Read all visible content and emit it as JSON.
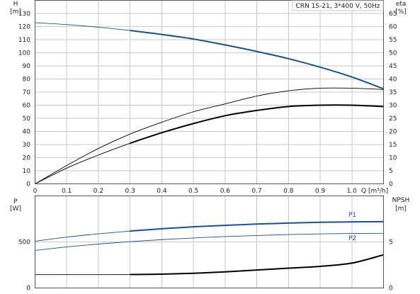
{
  "chart_data": [
    {
      "type": "line",
      "title": "CRN 1S-21, 3*400 V, 50Hz",
      "xlabel": "Q [m³/h]",
      "ylabel_left": [
        "H",
        "[m]"
      ],
      "ylabel_right": [
        "eta",
        "[%]"
      ],
      "xlim": [
        0,
        1.1
      ],
      "ylim_left": [
        0,
        140
      ],
      "ylim_right": [
        0,
        70
      ],
      "xticks": [
        "0",
        "0.1",
        "0.2",
        "0.3",
        "0.4",
        "0.5",
        "0.6",
        "0.7",
        "0.8",
        "0.9",
        "1.0"
      ],
      "yticks_left": [
        "0",
        "10",
        "20",
        "30",
        "40",
        "50",
        "60",
        "70",
        "80",
        "90",
        "100",
        "110",
        "120",
        "130"
      ],
      "yticks_right": [
        "0",
        "5",
        "10",
        "15",
        "20",
        "25",
        "30",
        "35",
        "40",
        "45",
        "50",
        "55",
        "60",
        "65"
      ],
      "grid": true,
      "series": [
        {
          "role": "head",
          "axis": "left",
          "color": "#1c4f8c",
          "x": [
            0,
            0.1,
            0.2,
            0.3,
            0.4,
            0.5,
            0.6,
            0.7,
            0.8,
            0.9,
            1.0,
            1.1
          ],
          "y": [
            123,
            121.5,
            119.5,
            117,
            114,
            110.5,
            106,
            101,
            95.5,
            89,
            81.5,
            72.5
          ],
          "bold_from": 0.3
        },
        {
          "role": "eta-thin",
          "axis": "right",
          "color": "#000000",
          "x": [
            0,
            0.1,
            0.2,
            0.3,
            0.4,
            0.5,
            0.6,
            0.7,
            0.8,
            0.9,
            1.0,
            1.1
          ],
          "y": [
            0,
            7,
            13.5,
            19,
            23.5,
            27.5,
            30.5,
            33.5,
            35.5,
            36.5,
            36.5,
            36
          ]
        },
        {
          "role": "eta-thin-2",
          "axis": "right",
          "color": "#000000",
          "x": [
            0,
            0.1,
            0.2,
            0.3,
            0.4,
            0.5,
            0.6,
            0.7,
            0.8,
            0.9,
            1.0,
            1.1
          ],
          "y": [
            0,
            6,
            11,
            15.5,
            19.5,
            23,
            26,
            28,
            29.5,
            30,
            30,
            29.5
          ],
          "bold_from": 0.3
        }
      ]
    },
    {
      "type": "line",
      "ylabel_left": [
        "P",
        "[W]"
      ],
      "ylabel_right": [
        "NPSH",
        "[m]"
      ],
      "xlim": [
        0,
        1.1
      ],
      "ylim_left": [
        0,
        1000
      ],
      "ylim_right": [
        0,
        10
      ],
      "yticks_left": [
        "0",
        "500"
      ],
      "yticks_right": [
        "0",
        "5"
      ],
      "grid": true,
      "series": [
        {
          "name": "P1",
          "axis": "left",
          "color": "#1c4f8c",
          "x": [
            0,
            0.1,
            0.2,
            0.3,
            0.4,
            0.5,
            0.6,
            0.7,
            0.8,
            0.9,
            1.0,
            1.1
          ],
          "y": [
            508,
            552,
            588,
            618,
            643,
            664,
            680,
            694,
            705,
            713,
            718,
            720
          ],
          "bold_from": 0.3
        },
        {
          "name": "P2",
          "axis": "left",
          "color": "#1c4f8c",
          "x": [
            0,
            0.1,
            0.2,
            0.3,
            0.4,
            0.5,
            0.6,
            0.7,
            0.8,
            0.9,
            1.0,
            1.1
          ],
          "y": [
            408,
            446,
            477,
            503,
            525,
            543,
            558,
            570,
            580,
            587,
            592,
            594
          ]
        },
        {
          "role": "npsh",
          "axis": "right",
          "color": "#000000",
          "x": [
            0,
            0.1,
            0.2,
            0.3,
            0.4,
            0.5,
            0.6,
            0.7,
            0.8,
            0.9,
            1.0,
            1.1
          ],
          "y": [
            1.45,
            1.45,
            1.45,
            1.46,
            1.5,
            1.6,
            1.75,
            1.95,
            2.15,
            2.35,
            2.7,
            3.6
          ],
          "bold_from": 0.3
        }
      ]
    }
  ]
}
